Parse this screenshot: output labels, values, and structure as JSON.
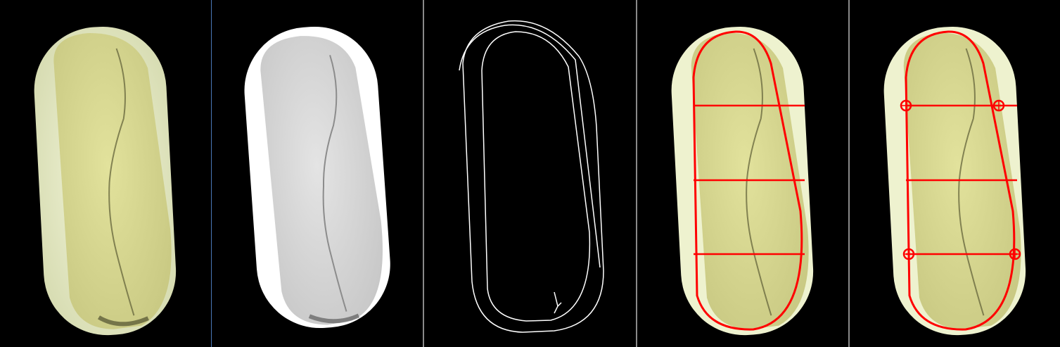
{
  "figure": {
    "panel_count": 5,
    "panels": [
      {
        "id": "original",
        "content": "color-capsule"
      },
      {
        "id": "grayscale",
        "content": "grayscale-capsule"
      },
      {
        "id": "edges",
        "content": "edge-contours"
      },
      {
        "id": "fitted-contour",
        "content": "capsule-with-red-contour-and-lines"
      },
      {
        "id": "measurement-points",
        "content": "capsule-with-red-contour-lines-and-circles"
      }
    ],
    "colors": {
      "background": "#000000",
      "capsule_fill": "#dede96",
      "capsule_rim": "#eef2cf",
      "gray_fill": "#dcdcdc",
      "gray_rim": "#ffffff",
      "overlay": "#ff0000",
      "edge_line": "#ffffff",
      "crack": "#5a5a3a"
    },
    "overlay_lines_per_panel": 3,
    "marker_circles": 4
  }
}
